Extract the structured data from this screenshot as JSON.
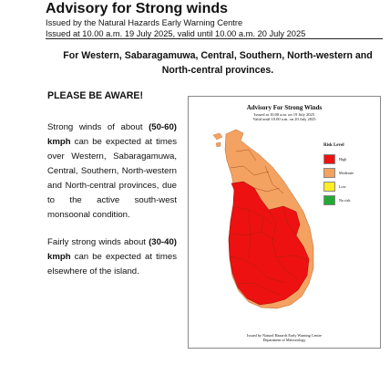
{
  "header": {
    "title": "Advisory for Strong winds",
    "issued_by": "Issued by the Natural Hazards Early Warning Centre",
    "issued_time": "Issued at 10.00 a.m. 19 July 2025, valid until 10.00 a.m. 20 July 2025"
  },
  "provinces_heading": "For Western, Sabaragamuwa, Central, Southern, North-western and North-central provinces.",
  "alert_heading": "PLEASE BE AWARE!",
  "paragraph1": {
    "pre": "Strong winds of about ",
    "speed": "(50-60) kmph",
    "post": " can be expected at times over Western, Sabaragamuwa, Central, Southern, North-western and North-central provinces, due to the active south-west monsoonal condition."
  },
  "paragraph2": {
    "pre": "Fairly strong winds about ",
    "speed": "(30-40) kmph",
    "post": " can be expected at times elsewhere of the island."
  },
  "map": {
    "title": "Advisory For Strong Winds",
    "issued": "Issued at 10.00 a.m. on 19 July 2025",
    "valid": "Valid until 10.00 a.m. on 20 July 2025",
    "legend_title": "Risk Level",
    "legend": [
      {
        "label": "High",
        "color": "#ee1111"
      },
      {
        "label": "Moderate",
        "color": "#f4a261"
      },
      {
        "label": "Low",
        "color": "#ffee22"
      },
      {
        "label": "No risk",
        "color": "#22aa33"
      }
    ],
    "footer_line1": "Issued by Natural Hazards Early Warning Centre",
    "footer_line2": "Department of Meteorology"
  }
}
